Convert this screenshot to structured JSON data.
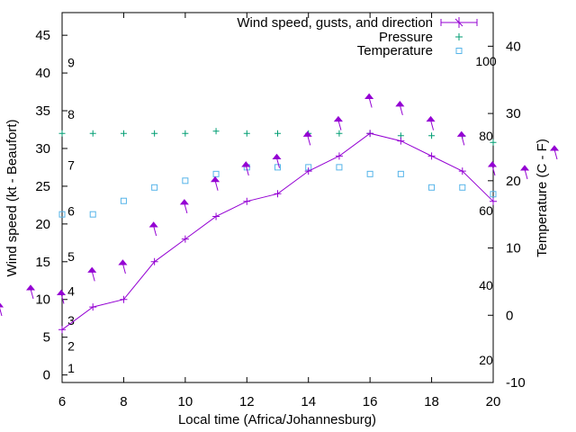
{
  "chart_data": {
    "type": "line",
    "title": "",
    "xlabel": "Local time (Africa/Johannesburg)",
    "ylabel_left": "Wind speed (kt - Beaufort)",
    "ylabel_right": "Temperature (C - F)",
    "xlim": [
      6,
      20
    ],
    "ylim_left": [
      -1,
      48
    ],
    "ylim_right": [
      -10,
      45
    ],
    "x_ticks": [
      "6",
      "8",
      "10",
      "12",
      "14",
      "16",
      "18",
      "20"
    ],
    "y_left_ticks": [
      "0",
      "5",
      "10",
      "15",
      "20",
      "25",
      "30",
      "35",
      "40",
      "45"
    ],
    "y_right_ticks": [
      "-10",
      "0",
      "10",
      "20",
      "30",
      "40"
    ],
    "beaufort_labels": [
      "1",
      "2",
      "3",
      "4",
      "5",
      "6",
      "7",
      "8",
      "9"
    ],
    "fahrenheit_labels": [
      "20",
      "40",
      "60",
      "80",
      "100"
    ],
    "grid": false,
    "legend_position": "top-right",
    "legend": [
      {
        "name": "Wind speed, gusts, and direction",
        "color": "#9400d3",
        "marker": "line-plus"
      },
      {
        "name": "Pressure",
        "color": "#009e73",
        "marker": "plus"
      },
      {
        "name": "Temperature",
        "color": "#56b4e9",
        "marker": "square"
      }
    ],
    "x": [
      6,
      7,
      8,
      9,
      10,
      11,
      12,
      13,
      14,
      15,
      16,
      17,
      18,
      19,
      20
    ],
    "series": [
      {
        "name": "Wind speed, gusts, and direction",
        "axis": "left",
        "values": [
          6,
          9,
          10,
          15,
          18,
          21,
          23,
          24,
          27,
          29,
          32,
          31,
          29,
          27,
          23
        ]
      },
      {
        "name": "Pressure",
        "axis": "left",
        "values": [
          32,
          32,
          32,
          32,
          32,
          32.3,
          32,
          32,
          32,
          32,
          32,
          31.7,
          31.7,
          31.7,
          30.8
        ]
      },
      {
        "name": "Temperature",
        "axis": "right",
        "values": [
          15,
          15,
          17,
          19,
          20,
          21,
          22,
          22,
          22,
          22,
          21,
          21,
          19,
          19,
          18
        ]
      }
    ],
    "gust_arrows": [
      {
        "x": 6,
        "y": 10.5
      },
      {
        "x": 7,
        "y": 13.5
      },
      {
        "x": 8,
        "y": 14.5
      },
      {
        "x": 9,
        "y": 19.5
      },
      {
        "x": 10,
        "y": 22.5
      },
      {
        "x": 11,
        "y": 25.5
      },
      {
        "x": 12,
        "y": 27.5
      },
      {
        "x": 13,
        "y": 28.5
      },
      {
        "x": 14,
        "y": 31.5
      },
      {
        "x": 15,
        "y": 33.5
      },
      {
        "x": 16,
        "y": 36.5
      },
      {
        "x": 17,
        "y": 35.5
      },
      {
        "x": 18,
        "y": 33.5
      },
      {
        "x": 19,
        "y": 31.5
      },
      {
        "x": 20,
        "y": 27.5
      }
    ]
  }
}
